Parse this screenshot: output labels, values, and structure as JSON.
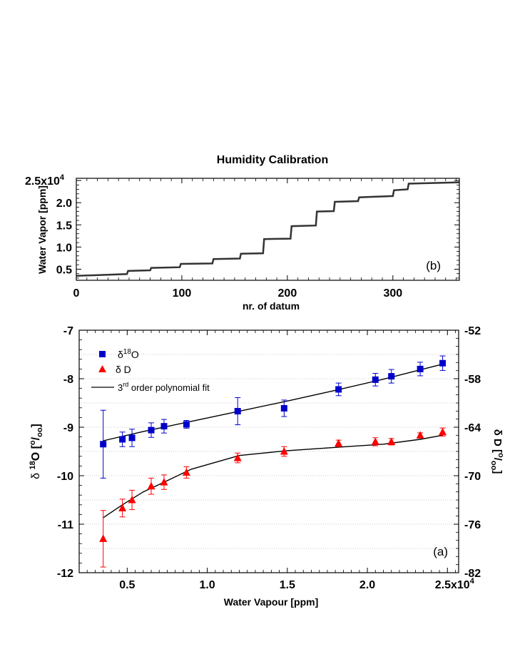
{
  "chart_data": [
    {
      "type": "line",
      "panel_label": "(b)",
      "title": "Humidity Calibration",
      "xlabel": "nr. of datum",
      "ylabel": "Water Vapor  [ppm]",
      "xlim": [
        0,
        363
      ],
      "ylim": [
        2500,
        25500
      ],
      "x_ticks": [
        "0",
        "100",
        "200",
        "300"
      ],
      "y_ticks": [
        "0.5",
        "1.0",
        "1.5",
        "2.0",
        "2.5x10⁴"
      ],
      "y_ticks_values": [
        5000,
        10000,
        15000,
        20000,
        25000
      ],
      "grid": false,
      "series": [
        {
          "color": "#333333",
          "x": [
            0,
            48,
            49,
            70,
            71,
            98,
            99,
            129,
            130,
            155,
            156,
            177,
            178,
            203,
            204,
            227,
            228,
            244,
            245,
            267,
            268,
            300,
            301,
            314,
            315,
            363
          ],
          "y": [
            3500,
            3900,
            4600,
            4750,
            5300,
            5450,
            6200,
            6300,
            7300,
            7400,
            8500,
            8600,
            11800,
            11900,
            14700,
            14850,
            18000,
            18100,
            20200,
            20350,
            21200,
            21500,
            22800,
            23000,
            24300,
            24600
          ]
        }
      ]
    },
    {
      "type": "scatter",
      "panel_label": "(a)",
      "xlabel": "Water Vapour [ppm]",
      "ylabel_left_prefix": "δ ",
      "ylabel_left_sup": "18",
      "ylabel_left_main": "O [",
      "ylabel_left_sup2": "o",
      "ylabel_left_suffix": "/",
      "ylabel_left_sub": "oo",
      "ylabel_left_end": "]",
      "ylabel_right_main": "δ D [",
      "ylabel_right_sup": "o",
      "ylabel_right_suffix": "/",
      "ylabel_right_sub": "oo",
      "ylabel_right_end": "]",
      "xlim": [
        2000,
        25700
      ],
      "ylim_left": [
        -12,
        -7
      ],
      "ylim_right": [
        -82,
        -52
      ],
      "x_ticks": [
        "0.5",
        "1.0",
        "1.5",
        "2.0",
        "2.5x10⁴"
      ],
      "x_ticks_values": [
        5000,
        10000,
        15000,
        20000,
        25000
      ],
      "y_ticks_left": [
        "-12",
        "-11",
        "-10",
        "-9",
        "-8",
        "-7"
      ],
      "y_ticks_right": [
        "-82",
        "-76",
        "-70",
        "-64",
        "-58",
        "-52"
      ],
      "grid": true,
      "legend_position": "top-left",
      "legend": [
        {
          "label_main": "δ",
          "label_sup": "18",
          "label_tail": "O",
          "color": "#0000cc",
          "marker": "square"
        },
        {
          "label_main": " δ D",
          "label_sup": "",
          "label_tail": "",
          "color": "#ff0000",
          "marker": "triangle"
        },
        {
          "label_main": "3",
          "label_sup": "rd",
          "label_tail": " order polynomial fit",
          "color": "#000000",
          "marker": "line"
        }
      ],
      "series": [
        {
          "axis": "left",
          "color": "#0000cc",
          "marker": "square",
          "x": [
            3500,
            4700,
            5300,
            6500,
            7300,
            8700,
            11900,
            14800,
            18200,
            20500,
            21500,
            23300,
            24700
          ],
          "y": [
            -9.35,
            -9.25,
            -9.22,
            -9.06,
            -8.98,
            -8.94,
            -8.67,
            -8.61,
            -8.22,
            -8.02,
            -7.95,
            -7.8,
            -7.68
          ],
          "err": [
            0.7,
            0.15,
            0.18,
            0.15,
            0.14,
            0.08,
            0.28,
            0.17,
            0.13,
            0.13,
            0.14,
            0.14,
            0.15
          ]
        },
        {
          "axis": "right",
          "color": "#ff0000",
          "marker": "triangle",
          "x": [
            3500,
            4700,
            5300,
            6500,
            7300,
            8700,
            11900,
            14800,
            18200,
            20500,
            21500,
            23300,
            24700
          ],
          "y": [
            -77.8,
            -74.0,
            -73.0,
            -71.3,
            -70.8,
            -69.6,
            -67.8,
            -67.0,
            -66.0,
            -65.8,
            -65.8,
            -65.0,
            -64.6
          ],
          "err": [
            3.5,
            1.1,
            1.2,
            1.0,
            0.9,
            0.7,
            0.6,
            0.6,
            0.4,
            0.5,
            0.4,
            0.3,
            0.5
          ]
        },
        {
          "axis": "left",
          "color": "#000000",
          "marker": "line",
          "x": [
            3500,
            6000,
            9000,
            12000,
            15000,
            18000,
            21000,
            24700
          ],
          "y": [
            -9.28,
            -9.09,
            -8.88,
            -8.67,
            -8.46,
            -8.24,
            -8.01,
            -7.7
          ]
        },
        {
          "axis": "right",
          "color": "#000000",
          "marker": "line",
          "x": [
            3500,
            4700,
            6000,
            7300,
            9000,
            12000,
            15000,
            18000,
            21000,
            23300,
            24700
          ],
          "y": [
            -75.2,
            -73.6,
            -72.0,
            -70.8,
            -69.2,
            -67.5,
            -66.9,
            -66.5,
            -66.1,
            -65.5,
            -65.0
          ]
        }
      ]
    }
  ]
}
